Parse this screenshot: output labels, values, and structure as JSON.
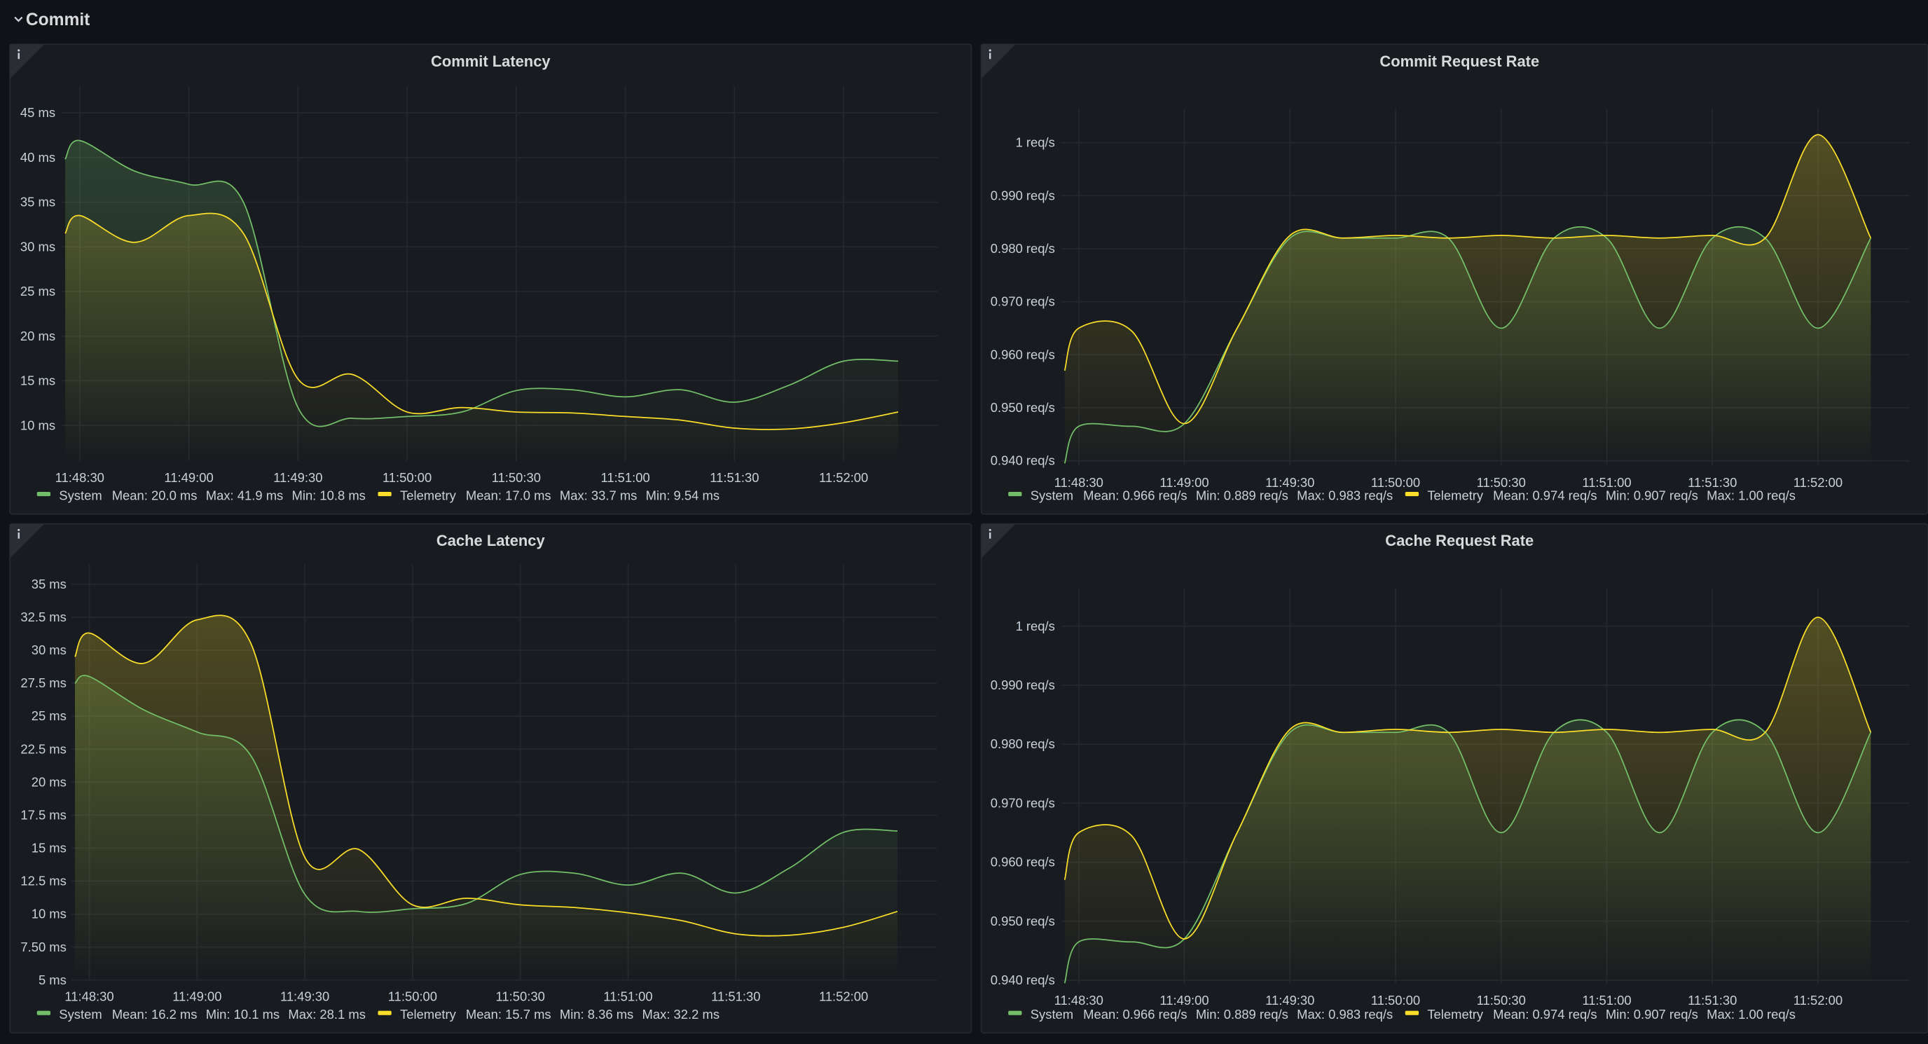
{
  "row_title": "Commit",
  "chart_data": [
    {
      "type": "area",
      "title": "Commit Latency",
      "x": [
        "11:48:26",
        "11:48:30",
        "11:48:45",
        "11:49:00",
        "11:49:15",
        "11:49:30",
        "11:49:45",
        "11:50:00",
        "11:50:15",
        "11:50:30",
        "11:50:45",
        "11:51:00",
        "11:51:15",
        "11:51:30",
        "11:51:45",
        "11:52:00",
        "11:52:15"
      ],
      "xlim": [
        "11:48:25",
        "11:52:26"
      ],
      "xticks": [
        "11:48:30",
        "11:49:00",
        "11:49:30",
        "11:50:00",
        "11:50:30",
        "11:51:00",
        "11:51:30",
        "11:52:00"
      ],
      "ylim": [
        6,
        48
      ],
      "yticks": [
        {
          "value": 10,
          "label": "10 ms"
        },
        {
          "value": 15,
          "label": "15 ms"
        },
        {
          "value": 20,
          "label": "20 ms"
        },
        {
          "value": 25,
          "label": "25 ms"
        },
        {
          "value": 30,
          "label": "30 ms"
        },
        {
          "value": 35,
          "label": "35 ms"
        },
        {
          "value": 40,
          "label": "40 ms"
        },
        {
          "value": 45,
          "label": "45 ms"
        }
      ],
      "grid": true,
      "series": [
        {
          "name": "System",
          "color": "#73bf69",
          "stats": [
            "Mean: 20.0 ms",
            "Max: 41.9 ms",
            "Min: 10.8 ms"
          ],
          "values": [
            39.8,
            41.9,
            38.5,
            37,
            35,
            12,
            10.8,
            11,
            11.5,
            13.9,
            14,
            13.2,
            14,
            12.6,
            14.5,
            17.2,
            17.2
          ]
        },
        {
          "name": "Telemetry",
          "color": "#fade2a",
          "stats": [
            "Mean: 17.0 ms",
            "Max: 33.7 ms",
            "Min: 9.54 ms"
          ],
          "values": [
            31.5,
            33.5,
            30.5,
            33.5,
            31.5,
            15.2,
            15.7,
            11.5,
            12,
            11.5,
            11.4,
            11,
            10.6,
            9.7,
            9.6,
            10.3,
            11.5
          ]
        }
      ]
    },
    {
      "type": "area",
      "title": "Commit Request Rate",
      "x": [
        "11:48:26",
        "11:48:30",
        "11:48:45",
        "11:49:00",
        "11:49:15",
        "11:49:30",
        "11:49:45",
        "11:50:00",
        "11:50:15",
        "11:50:30",
        "11:50:45",
        "11:51:00",
        "11:51:15",
        "11:51:30",
        "11:51:45",
        "11:52:00",
        "11:52:15"
      ],
      "xlim": [
        "11:48:25",
        "11:52:26"
      ],
      "xticks": [
        "11:48:30",
        "11:49:00",
        "11:49:30",
        "11:50:00",
        "11:50:30",
        "11:51:00",
        "11:51:30",
        "11:52:00"
      ],
      "ylim": [
        0.939,
        1.0065
      ],
      "yticks": [
        {
          "value": 0.94,
          "label": "0.940 req/s"
        },
        {
          "value": 0.95,
          "label": "0.950 req/s"
        },
        {
          "value": 0.96,
          "label": "0.960 req/s"
        },
        {
          "value": 0.97,
          "label": "0.970 req/s"
        },
        {
          "value": 0.98,
          "label": "0.980 req/s"
        },
        {
          "value": 0.99,
          "label": "0.990 req/s"
        },
        {
          "value": 1,
          "label": "1 req/s"
        }
      ],
      "grid": true,
      "series": [
        {
          "name": "System",
          "color": "#73bf69",
          "stats": [
            "Mean: 0.966 req/s",
            "Min: 0.889 req/s",
            "Max: 0.983 req/s"
          ],
          "values": [
            0.9395,
            0.9465,
            0.9465,
            0.947,
            0.965,
            0.982,
            0.982,
            0.982,
            0.982,
            0.965,
            0.982,
            0.982,
            0.965,
            0.982,
            0.982,
            0.965,
            0.982
          ]
        },
        {
          "name": "Telemetry",
          "color": "#fade2a",
          "stats": [
            "Mean: 0.974 req/s",
            "Min: 0.907 req/s",
            "Max: 1.00 req/s"
          ],
          "values": [
            0.957,
            0.965,
            0.9645,
            0.947,
            0.965,
            0.9825,
            0.982,
            0.9825,
            0.982,
            0.9825,
            0.982,
            0.9825,
            0.982,
            0.9825,
            0.982,
            1.0015,
            0.982
          ]
        }
      ]
    },
    {
      "type": "area",
      "title": "Cache Latency",
      "x": [
        "11:48:26",
        "11:48:30",
        "11:48:45",
        "11:49:00",
        "11:49:15",
        "11:49:30",
        "11:49:45",
        "11:50:00",
        "11:50:15",
        "11:50:30",
        "11:50:45",
        "11:51:00",
        "11:51:15",
        "11:51:30",
        "11:51:45",
        "11:52:00",
        "11:52:15"
      ],
      "xlim": [
        "11:48:25",
        "11:52:26"
      ],
      "xticks": [
        "11:48:30",
        "11:49:00",
        "11:49:30",
        "11:50:00",
        "11:50:30",
        "11:51:00",
        "11:51:30",
        "11:52:00"
      ],
      "ylim": [
        5,
        36.5
      ],
      "yticks": [
        {
          "value": 5,
          "label": "5 ms"
        },
        {
          "value": 7.5,
          "label": "7.50 ms"
        },
        {
          "value": 10,
          "label": "10 ms"
        },
        {
          "value": 12.5,
          "label": "12.5 ms"
        },
        {
          "value": 15,
          "label": "15 ms"
        },
        {
          "value": 17.5,
          "label": "17.5 ms"
        },
        {
          "value": 20,
          "label": "20 ms"
        },
        {
          "value": 22.5,
          "label": "22.5 ms"
        },
        {
          "value": 25,
          "label": "25 ms"
        },
        {
          "value": 27.5,
          "label": "27.5 ms"
        },
        {
          "value": 30,
          "label": "30 ms"
        },
        {
          "value": 32.5,
          "label": "32.5 ms"
        },
        {
          "value": 35,
          "label": "35 ms"
        }
      ],
      "grid": true,
      "series": [
        {
          "name": "System",
          "color": "#73bf69",
          "stats": [
            "Mean: 16.2 ms",
            "Min: 10.1 ms",
            "Max: 28.1 ms"
          ],
          "values": [
            27.5,
            28,
            25.5,
            23.8,
            22,
            11.5,
            10.2,
            10.4,
            10.8,
            13,
            13.1,
            12.2,
            13.1,
            11.6,
            13.5,
            16.2,
            16.3
          ]
        },
        {
          "name": "Telemetry",
          "color": "#fade2a",
          "stats": [
            "Mean: 15.7 ms",
            "Min: 8.36 ms",
            "Max: 32.2 ms"
          ],
          "values": [
            29.5,
            31.3,
            29,
            32.3,
            30.5,
            14.3,
            14.9,
            10.7,
            11.2,
            10.7,
            10.5,
            10.1,
            9.5,
            8.5,
            8.4,
            9,
            10.2
          ]
        }
      ]
    },
    {
      "type": "area",
      "title": "Cache Request Rate",
      "x": [
        "11:48:26",
        "11:48:30",
        "11:48:45",
        "11:49:00",
        "11:49:15",
        "11:49:30",
        "11:49:45",
        "11:50:00",
        "11:50:15",
        "11:50:30",
        "11:50:45",
        "11:51:00",
        "11:51:15",
        "11:51:30",
        "11:51:45",
        "11:52:00",
        "11:52:15"
      ],
      "xlim": [
        "11:48:25",
        "11:52:26"
      ],
      "xticks": [
        "11:48:30",
        "11:49:00",
        "11:49:30",
        "11:50:00",
        "11:50:30",
        "11:51:00",
        "11:51:30",
        "11:52:00"
      ],
      "ylim": [
        0.9394,
        1.0065
      ],
      "yticks": [
        {
          "value": 0.94,
          "label": "0.940 req/s"
        },
        {
          "value": 0.95,
          "label": "0.950 req/s"
        },
        {
          "value": 0.96,
          "label": "0.960 req/s"
        },
        {
          "value": 0.97,
          "label": "0.970 req/s"
        },
        {
          "value": 0.98,
          "label": "0.980 req/s"
        },
        {
          "value": 0.99,
          "label": "0.990 req/s"
        },
        {
          "value": 1,
          "label": "1 req/s"
        }
      ],
      "grid": true,
      "series": [
        {
          "name": "System",
          "color": "#73bf69",
          "stats": [
            "Mean: 0.966 req/s",
            "Min: 0.889 req/s",
            "Max: 0.983 req/s"
          ],
          "values": [
            0.9395,
            0.9465,
            0.9465,
            0.947,
            0.965,
            0.982,
            0.982,
            0.982,
            0.982,
            0.965,
            0.982,
            0.982,
            0.965,
            0.982,
            0.982,
            0.965,
            0.982
          ]
        },
        {
          "name": "Telemetry",
          "color": "#fade2a",
          "stats": [
            "Mean: 0.974 req/s",
            "Min: 0.907 req/s",
            "Max: 1.00 req/s"
          ],
          "values": [
            0.957,
            0.965,
            0.9645,
            0.947,
            0.965,
            0.9825,
            0.982,
            0.9825,
            0.982,
            0.9825,
            0.982,
            0.9825,
            0.982,
            0.9825,
            0.982,
            1.0015,
            0.982
          ]
        }
      ]
    }
  ]
}
